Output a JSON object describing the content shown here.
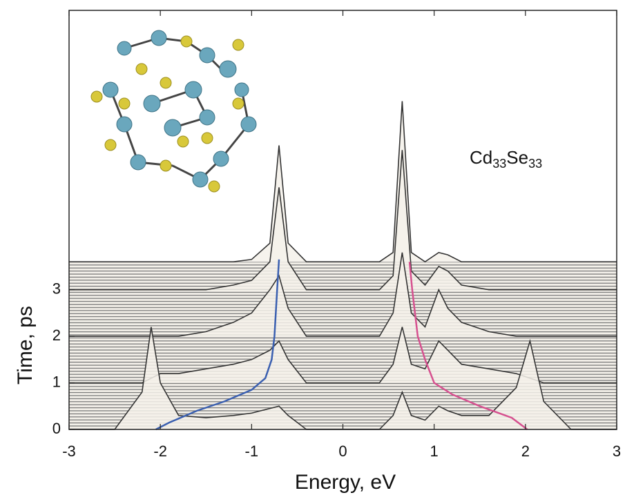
{
  "chart_data": {
    "type": "waterfall",
    "x_label": "Energy, eV",
    "y_label": "Time, ps",
    "annotation": [
      "Cd",
      "33",
      "Se",
      "33"
    ],
    "xlim": [
      -3,
      3
    ],
    "xticks": [
      -3,
      -2,
      -1,
      0,
      1,
      2,
      3
    ],
    "ylim": [
      0,
      9
    ],
    "yticks": [
      0,
      1,
      2,
      3
    ],
    "energy": [
      -3,
      -2.5,
      -2.2,
      -2.1,
      -2.0,
      -1.8,
      -1.5,
      -1.2,
      -1.0,
      -0.8,
      -0.7,
      -0.6,
      -0.4,
      0,
      0.4,
      0.55,
      0.65,
      0.75,
      0.9,
      1.05,
      1.15,
      1.3,
      1.6,
      1.9,
      2.05,
      2.2,
      2.5,
      3
    ],
    "spectra": [
      {
        "time": 0,
        "values": [
          0,
          0,
          0.8,
          2.2,
          1.0,
          0.3,
          0.25,
          0.3,
          0.35,
          0.45,
          0.5,
          0.3,
          0,
          0,
          0,
          0.3,
          0.8,
          0.3,
          0.2,
          0.5,
          0.4,
          0.3,
          0.3,
          0.9,
          1.9,
          0.6,
          0,
          0
        ]
      },
      {
        "time": 1,
        "values": [
          0,
          0,
          0,
          0.1,
          0.2,
          0.2,
          0.3,
          0.4,
          0.5,
          0.7,
          0.9,
          0.5,
          0,
          0,
          0,
          0.4,
          1.2,
          0.4,
          0.3,
          0.9,
          0.7,
          0.4,
          0.3,
          0.2,
          0.1,
          0,
          0,
          0
        ]
      },
      {
        "time": 2,
        "values": [
          0,
          0,
          0,
          0,
          0,
          0,
          0.1,
          0.3,
          0.5,
          1.0,
          1.3,
          0.6,
          0,
          0,
          0,
          0.5,
          1.8,
          0.5,
          0.2,
          1.0,
          0.6,
          0.3,
          0.1,
          0,
          0,
          0,
          0,
          0
        ]
      },
      {
        "time": 3,
        "values": [
          0,
          0,
          0,
          0,
          0,
          0,
          0,
          0.1,
          0.2,
          0.6,
          2.2,
          0.6,
          0,
          0,
          0,
          0.3,
          3.0,
          0.4,
          0.1,
          0.5,
          0.4,
          0.1,
          0,
          0,
          0,
          0,
          0,
          0
        ]
      },
      {
        "time": 3.6,
        "values": [
          0,
          0,
          0,
          0,
          0,
          0,
          0,
          0,
          0.05,
          0.4,
          2.5,
          0.4,
          0,
          0,
          0,
          0.2,
          3.45,
          0.2,
          0,
          0.2,
          0.15,
          0,
          0,
          0,
          0,
          0,
          0,
          0
        ]
      }
    ],
    "series": [
      {
        "color": "#3a5fb0",
        "x": [
          -2.05,
          -1.9,
          -1.6,
          -1.3,
          -1.0,
          -0.85,
          -0.78,
          -0.75,
          -0.72,
          -0.7
        ],
        "values": [
          0,
          0.15,
          0.4,
          0.6,
          0.85,
          1.1,
          1.5,
          2.0,
          3.0,
          3.65
        ]
      },
      {
        "color": "#d6508f",
        "x": [
          2.02,
          1.85,
          1.5,
          1.2,
          1.0,
          0.9,
          0.82,
          0.76,
          0.73
        ],
        "values": [
          0,
          0.25,
          0.5,
          0.75,
          1.0,
          1.5,
          2.0,
          3.0,
          3.6
        ]
      }
    ]
  }
}
